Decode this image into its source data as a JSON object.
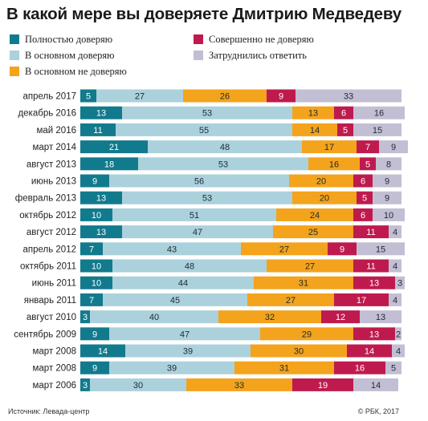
{
  "chart_data": {
    "type": "bar",
    "orientation": "horizontal",
    "stacked": true,
    "title": "В какой мере вы доверяете Дмитрию Медведеву",
    "categories": [
      "апрель 2017",
      "декабрь 2016",
      "май 2016",
      "март 2014",
      "август 2013",
      "июнь 2013",
      "февраль 2013",
      "октябрь 2012",
      "август 2012",
      "апрель 2012",
      "октябрь 2011",
      "июнь 2011",
      "январь 2011",
      "август 2010",
      "сентябрь 2009",
      "март 2008",
      "март 2008",
      "март 2006"
    ],
    "series": [
      {
        "name": "Полностью доверяю",
        "color": "#127a8d",
        "values": [
          5,
          13,
          11,
          21,
          18,
          9,
          13,
          10,
          13,
          7,
          10,
          10,
          7,
          3,
          9,
          14,
          9,
          3
        ]
      },
      {
        "name": "В основном доверяю",
        "color": "#abd1dc",
        "values": [
          27,
          53,
          55,
          48,
          53,
          56,
          53,
          51,
          47,
          43,
          48,
          44,
          45,
          40,
          47,
          39,
          39,
          30
        ]
      },
      {
        "name": "В основном не доверяю",
        "color": "#f4a31c",
        "values": [
          26,
          13,
          14,
          17,
          16,
          20,
          20,
          24,
          25,
          27,
          27,
          31,
          27,
          32,
          29,
          30,
          31,
          33
        ]
      },
      {
        "name": "Совершенно не доверяю",
        "color": "#bf1a4e",
        "values": [
          9,
          6,
          5,
          7,
          5,
          6,
          5,
          6,
          11,
          9,
          11,
          13,
          17,
          12,
          13,
          14,
          16,
          19
        ]
      },
      {
        "name": "Затруднились ответить",
        "color": "#c2bfd4",
        "values": [
          33,
          16,
          15,
          9,
          8,
          9,
          9,
          10,
          4,
          15,
          4,
          3,
          4,
          13,
          2,
          4,
          5,
          14
        ]
      }
    ],
    "legend_order": [
      0,
      1,
      2,
      3,
      4
    ],
    "xlim": [
      0,
      100
    ],
    "grid": false,
    "legend_position": "top"
  },
  "footer": {
    "source": "Источник: Левада-центр",
    "credit": "© РБК, 2017"
  }
}
